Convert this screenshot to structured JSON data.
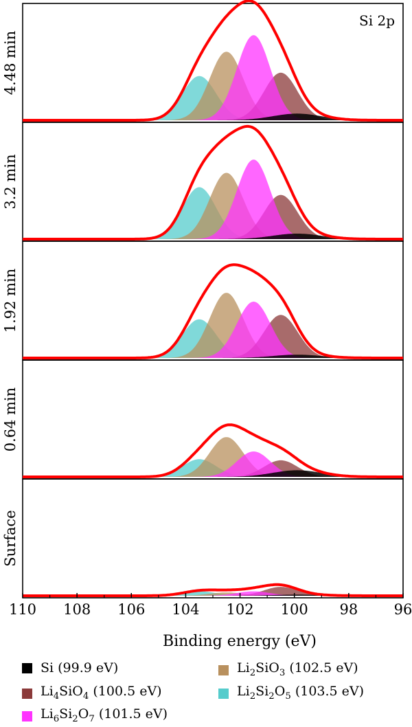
{
  "chart_data": {
    "type": "area",
    "title": "Si 2p",
    "xlabel": "Binding energy (eV)",
    "ylabel": "",
    "xlim": [
      110,
      96
    ],
    "x_reversed": true,
    "x_ticks": [
      "110",
      "108",
      "106",
      "104",
      "102",
      "100",
      "98",
      "96"
    ],
    "grid": false,
    "legend_position": "bottom",
    "components": [
      {
        "key": "si",
        "label": "Si (99.9 eV)",
        "center": 99.9,
        "color": "#000000"
      },
      {
        "key": "li4sio4",
        "label": "Li4SiO4 (100.5 eV)",
        "center": 100.5,
        "color": "#8B3A3A"
      },
      {
        "key": "li6si2o7",
        "label": "Li6Si2O7 (101.5 eV)",
        "center": 101.5,
        "color": "#FF33FF"
      },
      {
        "key": "li2sio3",
        "label": "Li2SiO3 (102.5 eV)",
        "center": 102.5,
        "color": "#B8905E"
      },
      {
        "key": "li2si2o5",
        "label": "Li2Si2O5 (103.5 eV)",
        "center": 103.5,
        "color": "#55CCCC"
      }
    ],
    "envelope_color": "#FF0000",
    "panels": [
      {
        "label": "4.48 min",
        "peaks": {
          "si": 0.06,
          "li4sio4": 0.43,
          "li6si2o7": 0.77,
          "li2sio3": 0.62,
          "li2si2o5": 0.4
        }
      },
      {
        "label": "3.2 min",
        "peaks": {
          "si": 0.05,
          "li4sio4": 0.4,
          "li6si2o7": 0.72,
          "li2sio3": 0.6,
          "li2si2o5": 0.47
        }
      },
      {
        "label": "1.92 min",
        "peaks": {
          "si": 0.03,
          "li4sio4": 0.39,
          "li6si2o7": 0.51,
          "li2sio3": 0.59,
          "li2si2o5": 0.35
        }
      },
      {
        "label": "0.64 min",
        "peaks": {
          "si": 0.06,
          "li4sio4": 0.15,
          "li6si2o7": 0.23,
          "li2sio3": 0.36,
          "li2si2o5": 0.16
        }
      },
      {
        "label": "Surface",
        "peaks": {
          "si": 0.01,
          "li4sio4": 0.08,
          "li6si2o7": 0.04,
          "li2sio3": 0.03,
          "li2si2o5": 0.04
        }
      }
    ]
  }
}
